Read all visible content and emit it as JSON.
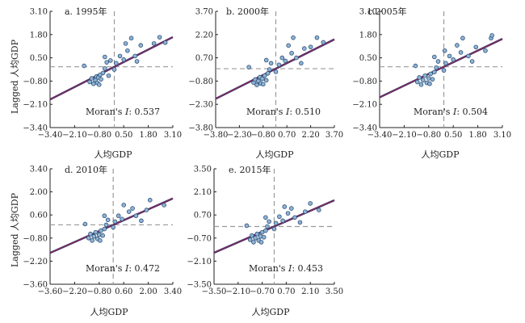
{
  "figure": {
    "ylabel": "Lagged 人均GDP",
    "xlabel": "人均GDP"
  },
  "chart_data": [
    {
      "type": "scatter",
      "title": "a. 1995年",
      "xlabel": "人均GDP",
      "ylabel": "Lagged 人均GDP",
      "xticks": [
        -3.4,
        -2.1,
        -0.8,
        0.5,
        1.8,
        3.1
      ],
      "yticks": [
        -3.4,
        -2.1,
        -0.8,
        0.5,
        1.8,
        3.1
      ],
      "xlim": [
        -3.4,
        3.1
      ],
      "ylim": [
        -3.4,
        3.1
      ],
      "moran_prefix": "Moran's ",
      "moran_symbol": "I",
      "moran_value": ": 0.537",
      "slope": 0.537,
      "fit_line": [
        [
          -3.4,
          -1.83
        ],
        [
          3.1,
          1.66
        ]
      ],
      "points": [
        [
          -1.3,
          -0.85
        ],
        [
          -1.2,
          -0.65
        ],
        [
          -1.1,
          -0.95
        ],
        [
          -1.0,
          -0.75
        ],
        [
          -0.95,
          -0.55
        ],
        [
          -0.9,
          -0.9
        ],
        [
          -0.85,
          -0.6
        ],
        [
          -0.8,
          -1.0
        ],
        [
          -0.75,
          -0.45
        ],
        [
          -0.7,
          -0.7
        ],
        [
          -0.6,
          -0.35
        ],
        [
          -0.5,
          -0.1
        ],
        [
          -0.4,
          0.25
        ],
        [
          -0.3,
          -0.5
        ],
        [
          -0.2,
          0.35
        ],
        [
          0.0,
          -0.15
        ],
        [
          0.1,
          0.2
        ],
        [
          0.3,
          0.6
        ],
        [
          0.5,
          0.4
        ],
        [
          0.6,
          1.3
        ],
        [
          0.7,
          0.9
        ],
        [
          0.9,
          1.6
        ],
        [
          1.1,
          0.6
        ],
        [
          1.2,
          0.3
        ],
        [
          1.4,
          1.2
        ],
        [
          2.1,
          1.3
        ],
        [
          2.4,
          1.65
        ],
        [
          2.7,
          1.35
        ],
        [
          -1.6,
          0.05
        ],
        [
          -0.5,
          0.55
        ]
      ],
      "dash_x": 0.0,
      "dash_y": 0.0
    },
    {
      "type": "scatter",
      "title": "b. 2000年",
      "xlabel": "人均GDP",
      "ylabel": "Lagged 人均GDP",
      "xticks": [
        -3.8,
        -2.3,
        -0.8,
        0.7,
        2.2,
        3.7
      ],
      "yticks": [
        -3.8,
        -2.3,
        -0.8,
        0.7,
        2.2,
        3.7
      ],
      "xlim": [
        -3.8,
        3.7
      ],
      "ylim": [
        -3.8,
        3.7
      ],
      "moran_prefix": "Moran's ",
      "moran_symbol": "I",
      "moran_value": ": 0.510",
      "slope": 0.51,
      "fit_line": [
        [
          -3.8,
          -1.94
        ],
        [
          3.7,
          1.89
        ]
      ],
      "points": [
        [
          -1.4,
          -0.9
        ],
        [
          -1.3,
          -0.7
        ],
        [
          -1.2,
          -1.05
        ],
        [
          -1.1,
          -0.8
        ],
        [
          -1.0,
          -0.55
        ],
        [
          -0.95,
          -0.95
        ],
        [
          -0.85,
          -0.65
        ],
        [
          -0.8,
          -1.0
        ],
        [
          -0.7,
          -0.45
        ],
        [
          -0.6,
          -0.75
        ],
        [
          -0.5,
          -0.3
        ],
        [
          -0.4,
          -0.05
        ],
        [
          -0.3,
          0.35
        ],
        [
          0.0,
          -0.2
        ],
        [
          0.2,
          0.25
        ],
        [
          0.4,
          0.7
        ],
        [
          0.6,
          0.5
        ],
        [
          0.8,
          1.5
        ],
        [
          1.0,
          1.0
        ],
        [
          1.1,
          2.0
        ],
        [
          1.3,
          0.7
        ],
        [
          1.6,
          0.35
        ],
        [
          1.8,
          1.3
        ],
        [
          2.2,
          1.4
        ],
        [
          2.6,
          2.0
        ],
        [
          3.0,
          1.7
        ],
        [
          -0.6,
          0.55
        ],
        [
          -1.7,
          0.1
        ]
      ],
      "dash_x": 0.0,
      "dash_y": 0.0
    },
    {
      "type": "scatter",
      "title": "c.2005年",
      "xlabel": "人均GDP",
      "ylabel": "Lagged 人均GDP",
      "xticks": [
        -3.4,
        -2.1,
        -0.8,
        0.5,
        1.8,
        3.1
      ],
      "yticks": [
        -3.4,
        -2.1,
        -0.8,
        0.5,
        1.8,
        3.1
      ],
      "xlim": [
        -3.4,
        3.1
      ],
      "ylim": [
        -3.4,
        3.1
      ],
      "moran_prefix": "Moran's ",
      "moran_symbol": "I",
      "moran_value": ": 0.504",
      "slope": 0.504,
      "fit_line": [
        [
          -3.4,
          -1.71
        ],
        [
          3.1,
          1.56
        ]
      ],
      "points": [
        [
          -1.4,
          -0.85
        ],
        [
          -1.3,
          -0.6
        ],
        [
          -1.2,
          -1.0
        ],
        [
          -1.1,
          -0.75
        ],
        [
          -1.0,
          -0.5
        ],
        [
          -0.9,
          -0.9
        ],
        [
          -0.8,
          -0.65
        ],
        [
          -0.75,
          -0.95
        ],
        [
          -0.7,
          -0.4
        ],
        [
          -0.6,
          -0.7
        ],
        [
          -0.5,
          -0.3
        ],
        [
          -0.4,
          -0.05
        ],
        [
          -0.3,
          0.3
        ],
        [
          0.0,
          -0.2
        ],
        [
          0.1,
          0.2
        ],
        [
          0.3,
          0.6
        ],
        [
          0.5,
          0.4
        ],
        [
          0.7,
          1.2
        ],
        [
          0.9,
          0.8
        ],
        [
          1.0,
          1.6
        ],
        [
          1.3,
          0.6
        ],
        [
          1.5,
          0.3
        ],
        [
          1.7,
          1.1
        ],
        [
          2.2,
          0.9
        ],
        [
          2.5,
          1.6
        ],
        [
          2.55,
          1.75
        ],
        [
          -0.5,
          0.55
        ],
        [
          -1.5,
          0.05
        ],
        [
          0.05,
          0.9
        ]
      ],
      "dash_x": 0.0,
      "dash_y": 0.0
    },
    {
      "type": "scatter",
      "title": "d. 2010年",
      "xlabel": "人均GDP",
      "ylabel": "Lagged 人均GDP",
      "xticks": [
        -3.6,
        -2.2,
        -0.8,
        0.6,
        2.0,
        3.4
      ],
      "yticks": [
        -3.6,
        -2.2,
        -0.8,
        0.6,
        2.0,
        3.4
      ],
      "xlim": [
        -3.6,
        3.4
      ],
      "ylim": [
        -3.6,
        3.4
      ],
      "moran_prefix": "Moran's ",
      "moran_symbol": "I",
      "moran_value": ": 0.472",
      "slope": 0.472,
      "fit_line": [
        [
          -3.6,
          -1.7
        ],
        [
          3.4,
          1.6
        ]
      ],
      "points": [
        [
          -1.4,
          -0.8
        ],
        [
          -1.3,
          -0.55
        ],
        [
          -1.2,
          -0.95
        ],
        [
          -1.1,
          -0.7
        ],
        [
          -1.0,
          -0.45
        ],
        [
          -0.9,
          -0.85
        ],
        [
          -0.8,
          -0.6
        ],
        [
          -0.75,
          -0.95
        ],
        [
          -0.7,
          -0.35
        ],
        [
          -0.6,
          -0.65
        ],
        [
          -0.5,
          -0.25
        ],
        [
          -0.4,
          0.0
        ],
        [
          -0.3,
          0.3
        ],
        [
          0.0,
          -0.15
        ],
        [
          0.1,
          0.2
        ],
        [
          0.3,
          0.55
        ],
        [
          0.5,
          0.35
        ],
        [
          0.6,
          1.2
        ],
        [
          0.9,
          0.8
        ],
        [
          1.1,
          1.0
        ],
        [
          1.3,
          0.55
        ],
        [
          1.6,
          0.25
        ],
        [
          1.9,
          0.9
        ],
        [
          2.1,
          1.5
        ],
        [
          2.9,
          1.2
        ],
        [
          -0.5,
          0.55
        ],
        [
          -1.6,
          0.05
        ]
      ],
      "dash_x": 0.0,
      "dash_y": 0.0
    },
    {
      "type": "scatter",
      "title": "e. 2015年",
      "xlabel": "人均GDP",
      "ylabel": "",
      "xticks": [
        -3.5,
        -2.1,
        -0.7,
        0.7,
        2.1,
        3.5
      ],
      "yticks": [
        -3.5,
        -2.1,
        -0.7,
        0.7,
        2.1,
        3.5
      ],
      "xlim": [
        -3.5,
        3.5
      ],
      "ylim": [
        -3.5,
        3.5
      ],
      "moran_prefix": "Moran's ",
      "moran_symbol": "I",
      "moran_value": ": 0.453",
      "slope": 0.453,
      "fit_line": [
        [
          -3.5,
          -1.59
        ],
        [
          3.5,
          1.59
        ]
      ],
      "points": [
        [
          -1.4,
          -0.8
        ],
        [
          -1.3,
          -0.55
        ],
        [
          -1.2,
          -0.95
        ],
        [
          -1.1,
          -0.7
        ],
        [
          -1.0,
          -0.45
        ],
        [
          -0.9,
          -0.85
        ],
        [
          -0.8,
          -0.6
        ],
        [
          -0.75,
          -0.95
        ],
        [
          -0.7,
          -0.35
        ],
        [
          -0.6,
          -0.65
        ],
        [
          -0.5,
          -0.25
        ],
        [
          -0.4,
          0.0
        ],
        [
          -0.3,
          0.3
        ],
        [
          0.0,
          -0.15
        ],
        [
          0.1,
          0.2
        ],
        [
          0.3,
          0.6
        ],
        [
          0.5,
          0.35
        ],
        [
          0.6,
          1.2
        ],
        [
          0.8,
          0.8
        ],
        [
          1.0,
          1.1
        ],
        [
          1.2,
          0.55
        ],
        [
          1.5,
          0.25
        ],
        [
          1.8,
          0.9
        ],
        [
          2.1,
          1.4
        ],
        [
          2.6,
          1.0
        ],
        [
          -0.5,
          0.55
        ],
        [
          -1.6,
          0.05
        ]
      ],
      "dash_x": 0.0,
      "dash_y": 0.0
    }
  ],
  "colors": {
    "axis": "#222222",
    "dash": "#9a9a9a",
    "fit_line": "#3b2a5e",
    "fit_line_inner": "#b0306a",
    "point_fill": "#8fb3d6",
    "point_stroke": "#2c4f73"
  }
}
